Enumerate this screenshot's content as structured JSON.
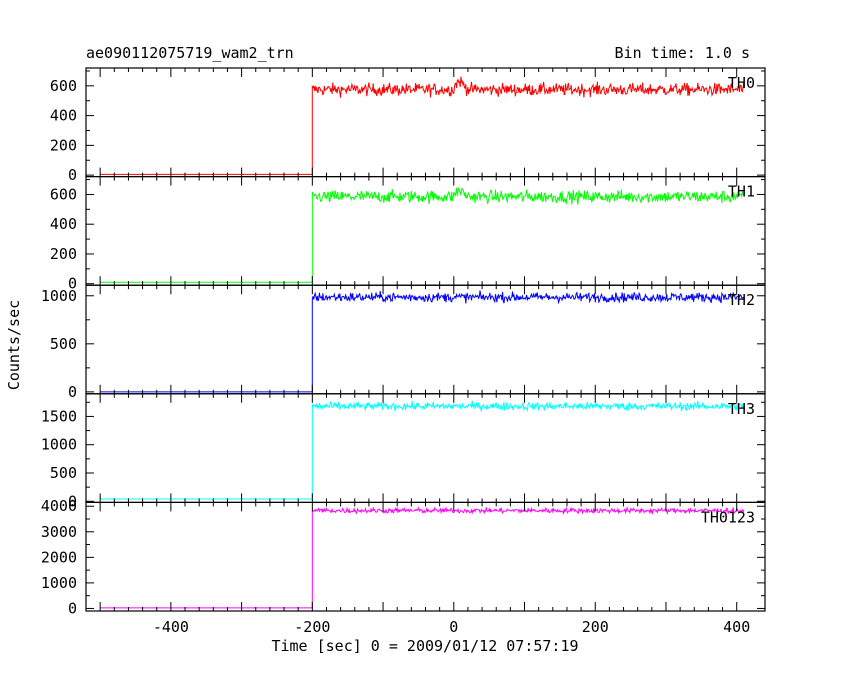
{
  "header": {
    "title": "ae090112075719_wam2_trn",
    "bin_time": "Bin time: 1.0 s"
  },
  "axes": {
    "xlabel": "Time [sec] 0 = 2009/01/12 07:57:19",
    "ylabel": "Counts/sec"
  },
  "chart_data": {
    "type": "line",
    "title": "ae090112075719_wam2_trn",
    "xlabel": "Time [sec] 0 = 2009/01/12 07:57:19",
    "ylabel": "Counts/sec",
    "xlim": [
      -520,
      440
    ],
    "x_ticks": [
      -400,
      -200,
      0,
      200,
      400
    ],
    "trigger_time": -200,
    "x_range_data": [
      -500,
      410
    ],
    "panels": [
      {
        "name": "TH0",
        "color": "#ff0000",
        "ylim": [
          -10,
          720
        ],
        "y_ticks": [
          0,
          200,
          400,
          600
        ],
        "pre_level": 5,
        "post_level": 575,
        "noise": 30,
        "bump": 55
      },
      {
        "name": "TH1",
        "color": "#00ff00",
        "ylim": [
          -10,
          720
        ],
        "y_ticks": [
          0,
          200,
          400,
          600
        ],
        "pre_level": 10,
        "post_level": 585,
        "noise": 30,
        "bump": 40
      },
      {
        "name": "TH2",
        "color": "#0000ff",
        "ylim": [
          -20,
          1110
        ],
        "y_ticks": [
          0,
          500,
          1000
        ],
        "pre_level": 0,
        "post_level": 985,
        "noise": 35,
        "bump": 0
      },
      {
        "name": "TH3",
        "color": "#00ffff",
        "ylim": [
          -20,
          1900
        ],
        "y_ticks": [
          0,
          500,
          1000,
          1500
        ],
        "pre_level": 40,
        "post_level": 1680,
        "noise": 50,
        "bump": 0
      },
      {
        "name": "TH0123",
        "color": "#ff00ff",
        "ylim": [
          -100,
          4150
        ],
        "y_ticks": [
          0,
          1000,
          2000,
          3000,
          4000
        ],
        "pre_level": 20,
        "post_level": 3830,
        "noise": 70,
        "bump": 0
      }
    ]
  }
}
